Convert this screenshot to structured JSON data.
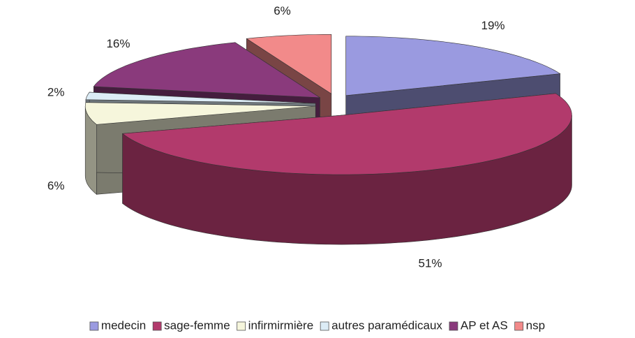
{
  "chart_data": {
    "type": "pie3d",
    "categories": [
      "medecin",
      "sage-femme",
      "infirmirmière",
      "autres paramédicaux",
      "AP et AS",
      "nsp"
    ],
    "values": [
      19,
      51,
      6,
      2,
      16,
      6
    ],
    "value_labels": [
      "19%",
      "51%",
      "6%",
      "2%",
      "16%",
      "6%"
    ],
    "colors": [
      "#9a9ae0",
      "#b23a6c",
      "#f6f6dc",
      "#dcecf6",
      "#8a3a7c",
      "#f28a8a"
    ],
    "legend": "bottom"
  }
}
